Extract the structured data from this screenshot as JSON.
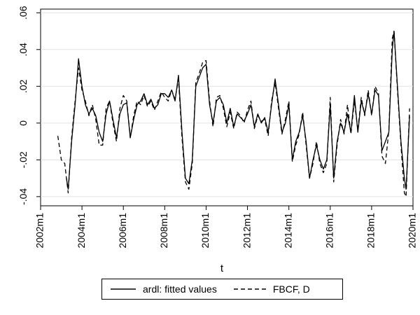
{
  "chart_data": {
    "type": "line",
    "xlabel": "t",
    "ylabel": "",
    "x_domain": [
      "2002m1",
      "2020m1"
    ],
    "ylim": [
      -0.045,
      0.062
    ],
    "x_ticks": [
      "2002m1",
      "2004m1",
      "2006m1",
      "2008m1",
      "2010m1",
      "2012m1",
      "2014m1",
      "2016m1",
      "2018m1",
      "2020m1"
    ],
    "y_ticks": [
      {
        "value": -0.04,
        "label": "-.04"
      },
      {
        "value": -0.02,
        "label": "-.02"
      },
      {
        "value": 0,
        "label": "0"
      },
      {
        "value": 0.02,
        "label": ".02"
      },
      {
        "value": 0.04,
        "label": ".04"
      },
      {
        "value": 0.06,
        "label": ".06"
      }
    ],
    "grid": "horizontal",
    "legend_position": "bottom",
    "series": [
      {
        "name": "ardl: fitted values",
        "style": "solid",
        "color": "#000000",
        "points": [
          [
            "2003m4",
            -0.03
          ],
          [
            "2003m5",
            -0.036
          ],
          [
            "2003m7",
            -0.01
          ],
          [
            "2003m9",
            0.01
          ],
          [
            "2003m11",
            0.035
          ],
          [
            "2004m1",
            0.02
          ],
          [
            "2004m3",
            0.01
          ],
          [
            "2004m5",
            0.005
          ],
          [
            "2004m7",
            0.008
          ],
          [
            "2004m9",
            0.004
          ],
          [
            "2004m11",
            -0.005
          ],
          [
            "2005m1",
            -0.01
          ],
          [
            "2005m3",
            0.005
          ],
          [
            "2005m5",
            0.012
          ],
          [
            "2005m7",
            0.002
          ],
          [
            "2005m9",
            -0.008
          ],
          [
            "2005m11",
            0.005
          ],
          [
            "2006m1",
            0.01
          ],
          [
            "2006m3",
            0.011
          ],
          [
            "2006m5",
            -0.008
          ],
          [
            "2006m7",
            0.002
          ],
          [
            "2006m9",
            0.01
          ],
          [
            "2006m11",
            0.012
          ],
          [
            "2007m1",
            0.016
          ],
          [
            "2007m3",
            0.01
          ],
          [
            "2007m5",
            0.013
          ],
          [
            "2007m7",
            0.008
          ],
          [
            "2007m9",
            0.01
          ],
          [
            "2007m11",
            0.016
          ],
          [
            "2008m1",
            0.016
          ],
          [
            "2008m3",
            0.014
          ],
          [
            "2008m5",
            0.018
          ],
          [
            "2008m7",
            0.012
          ],
          [
            "2008m9",
            0.026
          ],
          [
            "2008m11",
            -0.005
          ],
          [
            "2009m1",
            -0.03
          ],
          [
            "2009m3",
            -0.033
          ],
          [
            "2009m5",
            -0.02
          ],
          [
            "2009m7",
            0.02
          ],
          [
            "2009m9",
            0.025
          ],
          [
            "2009m11",
            0.03
          ],
          [
            "2010m1",
            0.032
          ],
          [
            "2010m3",
            0.01
          ],
          [
            "2010m5",
            0.0
          ],
          [
            "2010m7",
            0.012
          ],
          [
            "2010m9",
            0.014
          ],
          [
            "2010m11",
            0.01
          ],
          [
            "2011m1",
            0.0
          ],
          [
            "2011m3",
            0.008
          ],
          [
            "2011m5",
            -0.002
          ],
          [
            "2011m7",
            0.005
          ],
          [
            "2011m9",
            0.003
          ],
          [
            "2011m11",
            0.001
          ],
          [
            "2012m1",
            0.005
          ],
          [
            "2012m3",
            0.01
          ],
          [
            "2012m5",
            -0.002
          ],
          [
            "2012m7",
            0.005
          ],
          [
            "2012m9",
            0.0
          ],
          [
            "2012m11",
            0.003
          ],
          [
            "2013m1",
            -0.005
          ],
          [
            "2013m3",
            0.01
          ],
          [
            "2013m5",
            0.024
          ],
          [
            "2013m7",
            0.01
          ],
          [
            "2013m9",
            -0.005
          ],
          [
            "2013m11",
            0.0
          ],
          [
            "2014m1",
            0.01
          ],
          [
            "2014m3",
            -0.02
          ],
          [
            "2014m5",
            -0.01
          ],
          [
            "2014m7",
            -0.005
          ],
          [
            "2014m9",
            0.004
          ],
          [
            "2014m11",
            -0.01
          ],
          [
            "2015m1",
            -0.03
          ],
          [
            "2015m3",
            -0.02
          ],
          [
            "2015m5",
            -0.012
          ],
          [
            "2015m7",
            -0.02
          ],
          [
            "2015m9",
            -0.025
          ],
          [
            "2015m11",
            -0.02
          ],
          [
            "2016m1",
            0.01
          ],
          [
            "2016m3",
            -0.03
          ],
          [
            "2016m5",
            -0.01
          ],
          [
            "2016m7",
            0.0
          ],
          [
            "2016m9",
            -0.005
          ],
          [
            "2016m11",
            0.005
          ],
          [
            "2017m1",
            -0.005
          ],
          [
            "2017m3",
            0.015
          ],
          [
            "2017m5",
            -0.005
          ],
          [
            "2017m7",
            0.012
          ],
          [
            "2017m9",
            0.005
          ],
          [
            "2017m11",
            0.016
          ],
          [
            "2018m1",
            0.005
          ],
          [
            "2018m3",
            0.018
          ],
          [
            "2018m5",
            0.015
          ],
          [
            "2018m7",
            -0.015
          ],
          [
            "2018m9",
            -0.01
          ],
          [
            "2018m11",
            -0.005
          ],
          [
            "2019m1",
            0.04
          ],
          [
            "2019m2",
            0.05
          ],
          [
            "2019m4",
            0.02
          ],
          [
            "2019m6",
            -0.01
          ],
          [
            "2019m8",
            -0.03
          ],
          [
            "2019m9",
            -0.036
          ],
          [
            "2019m11",
            0.004
          ]
        ]
      },
      {
        "name": "FBCF, D",
        "style": "dashed",
        "color": "#000000",
        "points": [
          [
            "2002m11",
            -0.007
          ],
          [
            "2003m1",
            -0.02
          ],
          [
            "2003m3",
            -0.022
          ],
          [
            "2003m5",
            -0.038
          ],
          [
            "2003m7",
            -0.008
          ],
          [
            "2003m9",
            0.012
          ],
          [
            "2003m11",
            0.03
          ],
          [
            "2004m1",
            0.018
          ],
          [
            "2004m3",
            0.012
          ],
          [
            "2004m5",
            0.004
          ],
          [
            "2004m7",
            0.01
          ],
          [
            "2004m9",
            0.002
          ],
          [
            "2004m11",
            -0.012
          ],
          [
            "2005m1",
            -0.012
          ],
          [
            "2005m3",
            0.008
          ],
          [
            "2005m5",
            0.012
          ],
          [
            "2005m7",
            0.0
          ],
          [
            "2005m9",
            -0.01
          ],
          [
            "2005m11",
            0.008
          ],
          [
            "2006m1",
            0.015
          ],
          [
            "2006m3",
            0.012
          ],
          [
            "2006m5",
            -0.008
          ],
          [
            "2006m7",
            0.004
          ],
          [
            "2006m9",
            0.012
          ],
          [
            "2006m11",
            0.01
          ],
          [
            "2007m1",
            0.015
          ],
          [
            "2007m3",
            0.009
          ],
          [
            "2007m5",
            0.012
          ],
          [
            "2007m7",
            0.007
          ],
          [
            "2007m9",
            0.012
          ],
          [
            "2007m11",
            0.017
          ],
          [
            "2008m1",
            0.014
          ],
          [
            "2008m3",
            0.012
          ],
          [
            "2008m5",
            0.018
          ],
          [
            "2008m7",
            0.013
          ],
          [
            "2008m9",
            0.024
          ],
          [
            "2008m11",
            -0.008
          ],
          [
            "2009m1",
            -0.032
          ],
          [
            "2009m3",
            -0.036
          ],
          [
            "2009m5",
            -0.022
          ],
          [
            "2009m7",
            0.022
          ],
          [
            "2009m9",
            0.027
          ],
          [
            "2009m11",
            0.033
          ],
          [
            "2010m1",
            0.034
          ],
          [
            "2010m3",
            0.012
          ],
          [
            "2010m5",
            -0.002
          ],
          [
            "2010m7",
            0.014
          ],
          [
            "2010m9",
            0.015
          ],
          [
            "2010m11",
            0.008
          ],
          [
            "2011m1",
            -0.002
          ],
          [
            "2011m3",
            0.006
          ],
          [
            "2011m5",
            -0.003
          ],
          [
            "2011m7",
            0.006
          ],
          [
            "2011m9",
            0.004
          ],
          [
            "2011m11",
            0.0
          ],
          [
            "2012m1",
            0.007
          ],
          [
            "2012m3",
            0.012
          ],
          [
            "2012m5",
            -0.003
          ],
          [
            "2012m7",
            0.004
          ],
          [
            "2012m9",
            0.001
          ],
          [
            "2012m11",
            0.002
          ],
          [
            "2013m1",
            -0.007
          ],
          [
            "2013m3",
            0.012
          ],
          [
            "2013m5",
            0.022
          ],
          [
            "2013m7",
            0.008
          ],
          [
            "2013m9",
            -0.006
          ],
          [
            "2013m11",
            0.002
          ],
          [
            "2014m1",
            0.012
          ],
          [
            "2014m3",
            -0.021
          ],
          [
            "2014m5",
            -0.012
          ],
          [
            "2014m7",
            -0.006
          ],
          [
            "2014m9",
            0.006
          ],
          [
            "2014m11",
            -0.012
          ],
          [
            "2015m1",
            -0.03
          ],
          [
            "2015m3",
            -0.022
          ],
          [
            "2015m5",
            -0.01
          ],
          [
            "2015m7",
            -0.022
          ],
          [
            "2015m9",
            -0.027
          ],
          [
            "2015m11",
            -0.022
          ],
          [
            "2016m1",
            0.014
          ],
          [
            "2016m3",
            -0.032
          ],
          [
            "2016m5",
            -0.012
          ],
          [
            "2016m7",
            0.002
          ],
          [
            "2016m9",
            -0.006
          ],
          [
            "2016m11",
            0.01
          ],
          [
            "2017m1",
            -0.006
          ],
          [
            "2017m3",
            0.012
          ],
          [
            "2017m5",
            -0.004
          ],
          [
            "2017m7",
            0.014
          ],
          [
            "2017m9",
            0.004
          ],
          [
            "2017m11",
            0.018
          ],
          [
            "2018m1",
            0.004
          ],
          [
            "2018m3",
            0.02
          ],
          [
            "2018m5",
            0.016
          ],
          [
            "2018m7",
            -0.018
          ],
          [
            "2018m9",
            -0.022
          ],
          [
            "2018m11",
            -0.004
          ],
          [
            "2019m1",
            0.046
          ],
          [
            "2019m2",
            0.05
          ],
          [
            "2019m4",
            0.018
          ],
          [
            "2019m6",
            -0.012
          ],
          [
            "2019m8",
            -0.038
          ],
          [
            "2019m9",
            -0.04
          ],
          [
            "2019m11",
            0.008
          ]
        ]
      }
    ]
  }
}
